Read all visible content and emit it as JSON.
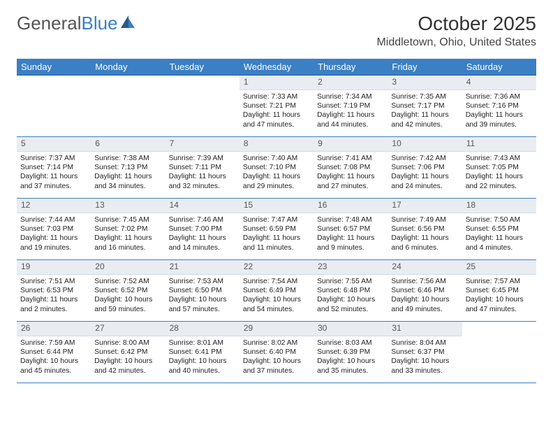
{
  "logo": {
    "text1": "General",
    "text2": "Blue"
  },
  "title": {
    "month": "October 2025",
    "location": "Middletown, Ohio, United States"
  },
  "colors": {
    "header_bg": "#3b7fc4",
    "header_text": "#ffffff",
    "daynum_bg": "#e9edf2",
    "border": "#3b7fc4",
    "logo_gray": "#555555",
    "logo_blue": "#3b7fc4"
  },
  "weekdays": [
    "Sunday",
    "Monday",
    "Tuesday",
    "Wednesday",
    "Thursday",
    "Friday",
    "Saturday"
  ],
  "grid": [
    [
      {
        "n": "",
        "sr": "",
        "ss": "",
        "dl": ""
      },
      {
        "n": "",
        "sr": "",
        "ss": "",
        "dl": ""
      },
      {
        "n": "",
        "sr": "",
        "ss": "",
        "dl": ""
      },
      {
        "n": "1",
        "sr": "Sunrise: 7:33 AM",
        "ss": "Sunset: 7:21 PM",
        "dl": "Daylight: 11 hours and 47 minutes."
      },
      {
        "n": "2",
        "sr": "Sunrise: 7:34 AM",
        "ss": "Sunset: 7:19 PM",
        "dl": "Daylight: 11 hours and 44 minutes."
      },
      {
        "n": "3",
        "sr": "Sunrise: 7:35 AM",
        "ss": "Sunset: 7:17 PM",
        "dl": "Daylight: 11 hours and 42 minutes."
      },
      {
        "n": "4",
        "sr": "Sunrise: 7:36 AM",
        "ss": "Sunset: 7:16 PM",
        "dl": "Daylight: 11 hours and 39 minutes."
      }
    ],
    [
      {
        "n": "5",
        "sr": "Sunrise: 7:37 AM",
        "ss": "Sunset: 7:14 PM",
        "dl": "Daylight: 11 hours and 37 minutes."
      },
      {
        "n": "6",
        "sr": "Sunrise: 7:38 AM",
        "ss": "Sunset: 7:13 PM",
        "dl": "Daylight: 11 hours and 34 minutes."
      },
      {
        "n": "7",
        "sr": "Sunrise: 7:39 AM",
        "ss": "Sunset: 7:11 PM",
        "dl": "Daylight: 11 hours and 32 minutes."
      },
      {
        "n": "8",
        "sr": "Sunrise: 7:40 AM",
        "ss": "Sunset: 7:10 PM",
        "dl": "Daylight: 11 hours and 29 minutes."
      },
      {
        "n": "9",
        "sr": "Sunrise: 7:41 AM",
        "ss": "Sunset: 7:08 PM",
        "dl": "Daylight: 11 hours and 27 minutes."
      },
      {
        "n": "10",
        "sr": "Sunrise: 7:42 AM",
        "ss": "Sunset: 7:06 PM",
        "dl": "Daylight: 11 hours and 24 minutes."
      },
      {
        "n": "11",
        "sr": "Sunrise: 7:43 AM",
        "ss": "Sunset: 7:05 PM",
        "dl": "Daylight: 11 hours and 22 minutes."
      }
    ],
    [
      {
        "n": "12",
        "sr": "Sunrise: 7:44 AM",
        "ss": "Sunset: 7:03 PM",
        "dl": "Daylight: 11 hours and 19 minutes."
      },
      {
        "n": "13",
        "sr": "Sunrise: 7:45 AM",
        "ss": "Sunset: 7:02 PM",
        "dl": "Daylight: 11 hours and 16 minutes."
      },
      {
        "n": "14",
        "sr": "Sunrise: 7:46 AM",
        "ss": "Sunset: 7:00 PM",
        "dl": "Daylight: 11 hours and 14 minutes."
      },
      {
        "n": "15",
        "sr": "Sunrise: 7:47 AM",
        "ss": "Sunset: 6:59 PM",
        "dl": "Daylight: 11 hours and 11 minutes."
      },
      {
        "n": "16",
        "sr": "Sunrise: 7:48 AM",
        "ss": "Sunset: 6:57 PM",
        "dl": "Daylight: 11 hours and 9 minutes."
      },
      {
        "n": "17",
        "sr": "Sunrise: 7:49 AM",
        "ss": "Sunset: 6:56 PM",
        "dl": "Daylight: 11 hours and 6 minutes."
      },
      {
        "n": "18",
        "sr": "Sunrise: 7:50 AM",
        "ss": "Sunset: 6:55 PM",
        "dl": "Daylight: 11 hours and 4 minutes."
      }
    ],
    [
      {
        "n": "19",
        "sr": "Sunrise: 7:51 AM",
        "ss": "Sunset: 6:53 PM",
        "dl": "Daylight: 11 hours and 2 minutes."
      },
      {
        "n": "20",
        "sr": "Sunrise: 7:52 AM",
        "ss": "Sunset: 6:52 PM",
        "dl": "Daylight: 10 hours and 59 minutes."
      },
      {
        "n": "21",
        "sr": "Sunrise: 7:53 AM",
        "ss": "Sunset: 6:50 PM",
        "dl": "Daylight: 10 hours and 57 minutes."
      },
      {
        "n": "22",
        "sr": "Sunrise: 7:54 AM",
        "ss": "Sunset: 6:49 PM",
        "dl": "Daylight: 10 hours and 54 minutes."
      },
      {
        "n": "23",
        "sr": "Sunrise: 7:55 AM",
        "ss": "Sunset: 6:48 PM",
        "dl": "Daylight: 10 hours and 52 minutes."
      },
      {
        "n": "24",
        "sr": "Sunrise: 7:56 AM",
        "ss": "Sunset: 6:46 PM",
        "dl": "Daylight: 10 hours and 49 minutes."
      },
      {
        "n": "25",
        "sr": "Sunrise: 7:57 AM",
        "ss": "Sunset: 6:45 PM",
        "dl": "Daylight: 10 hours and 47 minutes."
      }
    ],
    [
      {
        "n": "26",
        "sr": "Sunrise: 7:59 AM",
        "ss": "Sunset: 6:44 PM",
        "dl": "Daylight: 10 hours and 45 minutes."
      },
      {
        "n": "27",
        "sr": "Sunrise: 8:00 AM",
        "ss": "Sunset: 6:42 PM",
        "dl": "Daylight: 10 hours and 42 minutes."
      },
      {
        "n": "28",
        "sr": "Sunrise: 8:01 AM",
        "ss": "Sunset: 6:41 PM",
        "dl": "Daylight: 10 hours and 40 minutes."
      },
      {
        "n": "29",
        "sr": "Sunrise: 8:02 AM",
        "ss": "Sunset: 6:40 PM",
        "dl": "Daylight: 10 hours and 37 minutes."
      },
      {
        "n": "30",
        "sr": "Sunrise: 8:03 AM",
        "ss": "Sunset: 6:39 PM",
        "dl": "Daylight: 10 hours and 35 minutes."
      },
      {
        "n": "31",
        "sr": "Sunrise: 8:04 AM",
        "ss": "Sunset: 6:37 PM",
        "dl": "Daylight: 10 hours and 33 minutes."
      },
      {
        "n": "",
        "sr": "",
        "ss": "",
        "dl": ""
      }
    ]
  ]
}
